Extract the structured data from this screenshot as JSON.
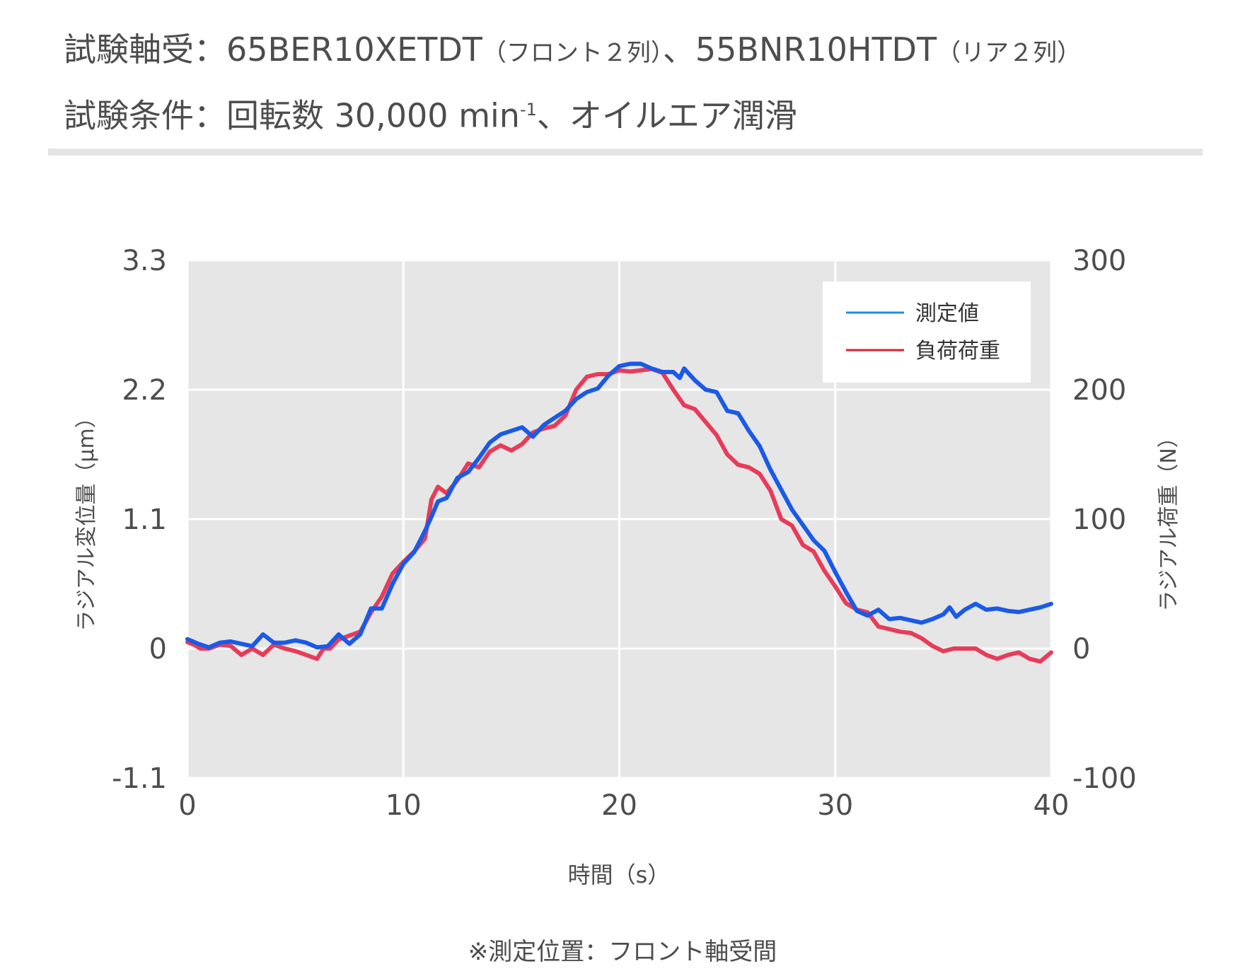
{
  "header": {
    "line1": {
      "label": "試験軸受：",
      "front_model": "65BER10XETDT",
      "front_note": "（フロント２列）",
      "sep": "、",
      "rear_model": "55BNR10HTDT",
      "rear_note": "（リア２列）"
    },
    "line2": {
      "label": "試験条件：",
      "text": "回転数 30,000 min",
      "sup": "-1",
      "rest": "、オイルエア潤滑"
    }
  },
  "footnote": "※測定位置：フロント軸受間",
  "chart_data": {
    "type": "line",
    "x_label": "時間（s）",
    "y_label_left": "ラジアル変位量（μm）",
    "y_label_right": "ラジアル荷重（N）",
    "xlim": [
      0,
      40
    ],
    "ylim_left": [
      -1.1,
      3.3
    ],
    "ylim_right": [
      -100,
      300
    ],
    "x_ticks": [
      "0",
      "10",
      "20",
      "30",
      "40"
    ],
    "x_tick_values": [
      0,
      10,
      20,
      30,
      40
    ],
    "y_left_ticks": [
      "-1.1",
      "0",
      "1.1",
      "2.2",
      "3.3"
    ],
    "y_left_tick_values": [
      -1.1,
      0,
      1.1,
      2.2,
      3.3
    ],
    "y_right_ticks": [
      "-100",
      "0",
      "100",
      "200",
      "300"
    ],
    "y_right_tick_values": [
      -100,
      0,
      100,
      200,
      300
    ],
    "grid": true,
    "legend_position": "top-right",
    "colors": {
      "plot_bg": "#e6e6e6",
      "grid": "#ffffff",
      "measured": "#1a5ae6",
      "load": "#e63c5a",
      "legend_measured": "#1e90e6",
      "legend_load": "#e01e32"
    },
    "series": [
      {
        "name": "負荷荷重",
        "axis": "right",
        "x": [
          0,
          0.3,
          0.6,
          1.0,
          1.5,
          2.0,
          2.5,
          3.0,
          3.5,
          4.0,
          4.5,
          5.0,
          5.5,
          6.0,
          6.3,
          6.6,
          7.0,
          7.5,
          8.0,
          8.5,
          9.0,
          9.5,
          10.0,
          10.5,
          11.0,
          11.3,
          11.6,
          12.0,
          12.5,
          13.0,
          13.5,
          14.0,
          14.5,
          15.0,
          15.5,
          16.0,
          16.5,
          17.0,
          17.5,
          18.0,
          18.5,
          19.0,
          19.5,
          20.0,
          20.5,
          21.0,
          21.5,
          22.0,
          22.5,
          23.0,
          23.5,
          24.0,
          24.5,
          25.0,
          25.5,
          26.0,
          26.5,
          27.0,
          27.5,
          28.0,
          28.5,
          29.0,
          29.5,
          30.0,
          30.5,
          31.0,
          31.5,
          32.0,
          32.5,
          33.0,
          33.5,
          34.0,
          34.5,
          35.0,
          35.5,
          36.0,
          36.5,
          37.0,
          37.5,
          38.0,
          38.5,
          39.0,
          39.5,
          40.0
        ],
        "values": [
          5,
          3,
          0,
          0,
          3,
          2,
          -5,
          0,
          -5,
          3,
          0,
          -2,
          -5,
          -8,
          0,
          0,
          7,
          10,
          13,
          28,
          40,
          58,
          67,
          75,
          85,
          115,
          125,
          120,
          130,
          143,
          140,
          152,
          157,
          153,
          158,
          167,
          170,
          172,
          180,
          200,
          210,
          212,
          212,
          215,
          214,
          215,
          216,
          213,
          200,
          188,
          185,
          175,
          165,
          150,
          142,
          140,
          135,
          122,
          100,
          95,
          80,
          75,
          60,
          48,
          35,
          30,
          28,
          17,
          15,
          13,
          12,
          8,
          2,
          -2,
          0,
          0,
          0,
          -5,
          -8,
          -5,
          -3,
          -8,
          -10,
          -3
        ]
      },
      {
        "name": "測定値",
        "axis": "left",
        "x": [
          0,
          0.5,
          1.0,
          1.5,
          2.0,
          2.5,
          3.0,
          3.5,
          4.0,
          4.5,
          5.0,
          5.5,
          6.0,
          6.5,
          7.0,
          7.5,
          8.0,
          8.5,
          9.0,
          9.5,
          10.0,
          10.5,
          11.0,
          11.3,
          11.6,
          12.0,
          12.5,
          13.0,
          13.5,
          14.0,
          14.5,
          15.0,
          15.5,
          16.0,
          16.5,
          17.0,
          17.5,
          18.0,
          18.5,
          19.0,
          19.5,
          20.0,
          20.5,
          21.0,
          21.5,
          22.0,
          22.5,
          22.8,
          23.0,
          23.5,
          24.0,
          24.5,
          25.0,
          25.5,
          26.0,
          26.5,
          27.0,
          27.5,
          28.0,
          28.5,
          29.0,
          29.5,
          30.0,
          30.5,
          31.0,
          31.5,
          32.0,
          32.5,
          33.0,
          33.5,
          34.0,
          34.5,
          35.0,
          35.3,
          35.6,
          36.0,
          36.5,
          37.0,
          37.5,
          38.0,
          38.5,
          39.0,
          39.5,
          40.0
        ],
        "values": [
          0.08,
          0.04,
          0.01,
          0.05,
          0.06,
          0.04,
          0.02,
          0.12,
          0.05,
          0.05,
          0.07,
          0.05,
          0.01,
          0.02,
          0.12,
          0.04,
          0.12,
          0.34,
          0.34,
          0.55,
          0.72,
          0.82,
          1.0,
          1.12,
          1.25,
          1.28,
          1.45,
          1.5,
          1.62,
          1.75,
          1.82,
          1.85,
          1.88,
          1.8,
          1.9,
          1.96,
          2.02,
          2.12,
          2.18,
          2.21,
          2.32,
          2.4,
          2.42,
          2.42,
          2.38,
          2.35,
          2.35,
          2.3,
          2.38,
          2.28,
          2.2,
          2.18,
          2.02,
          2.0,
          1.85,
          1.72,
          1.52,
          1.35,
          1.18,
          1.05,
          0.92,
          0.83,
          0.65,
          0.48,
          0.32,
          0.28,
          0.33,
          0.25,
          0.26,
          0.24,
          0.22,
          0.25,
          0.29,
          0.35,
          0.27,
          0.33,
          0.38,
          0.33,
          0.34,
          0.32,
          0.31,
          0.33,
          0.35,
          0.38
        ]
      }
    ]
  }
}
